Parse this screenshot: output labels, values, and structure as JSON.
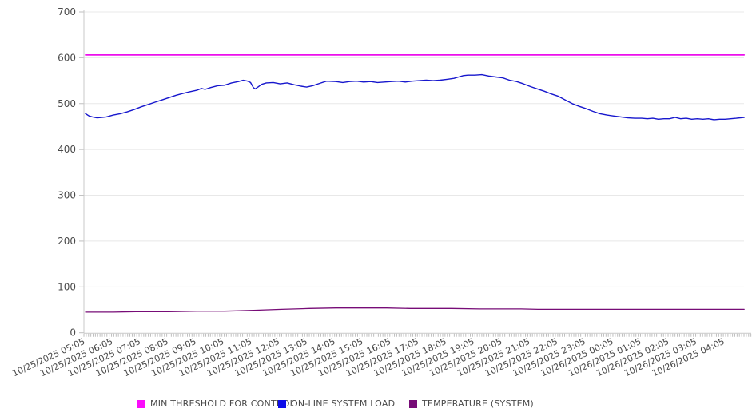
{
  "chart_data": {
    "type": "line",
    "title": "",
    "xlabel": "",
    "ylabel": "",
    "ylim": [
      0,
      700
    ],
    "y_ticks": [
      "0",
      "100",
      "200",
      "300",
      "400",
      "500",
      "600",
      "700"
    ],
    "grid": "horizontal",
    "legend_position": "bottom",
    "x_tick_labels": [
      "10/25/2025 05:05",
      "10/25/2025 06:05",
      "10/25/2025 07:05",
      "10/25/2025 08:05",
      "10/25/2025 09:05",
      "10/25/2025 10:05",
      "10/25/2025 11:05",
      "10/25/2025 12:05",
      "10/25/2025 13:05",
      "10/25/2025 14:05",
      "10/25/2025 15:05",
      "10/25/2025 16:05",
      "10/25/2025 17:05",
      "10/25/2025 18:05",
      "10/25/2025 19:05",
      "10/25/2025 20:05",
      "10/25/2025 21:05",
      "10/25/2025 22:05",
      "10/25/2025 23:05",
      "10/26/2025 00:05",
      "10/26/2025 01:05",
      "10/26/2025 02:05",
      "10/26/2025 03:05",
      "10/26/2025 04:05"
    ],
    "minutes_between_ticks": 60,
    "x_domain_minutes": [
      0,
      1421
    ],
    "series": [
      {
        "name": "MIN THRESHOLD FOR CONTROL",
        "color": "#ec0fec",
        "stroke_width": 1.8,
        "points": [
          [
            0,
            606
          ],
          [
            1421,
            606
          ]
        ]
      },
      {
        "name": "ON-LINE SYSTEM LOAD",
        "color": "#1717cd",
        "stroke_width": 1.4,
        "points": [
          [
            0,
            478
          ],
          [
            8,
            473
          ],
          [
            15,
            471
          ],
          [
            25,
            469
          ],
          [
            35,
            470
          ],
          [
            45,
            471
          ],
          [
            60,
            475
          ],
          [
            75,
            478
          ],
          [
            90,
            482
          ],
          [
            105,
            487
          ],
          [
            120,
            493
          ],
          [
            135,
            498
          ],
          [
            150,
            503
          ],
          [
            165,
            508
          ],
          [
            180,
            513
          ],
          [
            195,
            518
          ],
          [
            210,
            522
          ],
          [
            225,
            526
          ],
          [
            240,
            529
          ],
          [
            250,
            533
          ],
          [
            258,
            531
          ],
          [
            270,
            535
          ],
          [
            285,
            539
          ],
          [
            300,
            540
          ],
          [
            315,
            545
          ],
          [
            330,
            548
          ],
          [
            340,
            551
          ],
          [
            350,
            549
          ],
          [
            356,
            546
          ],
          [
            362,
            535
          ],
          [
            366,
            532
          ],
          [
            372,
            536
          ],
          [
            380,
            542
          ],
          [
            390,
            545
          ],
          [
            405,
            546
          ],
          [
            420,
            543
          ],
          [
            435,
            545
          ],
          [
            450,
            541
          ],
          [
            465,
            538
          ],
          [
            477,
            536
          ],
          [
            490,
            539
          ],
          [
            505,
            544
          ],
          [
            520,
            549
          ],
          [
            540,
            548
          ],
          [
            555,
            546
          ],
          [
            570,
            548
          ],
          [
            585,
            549
          ],
          [
            600,
            547
          ],
          [
            615,
            548
          ],
          [
            630,
            546
          ],
          [
            645,
            547
          ],
          [
            660,
            548
          ],
          [
            675,
            549
          ],
          [
            690,
            547
          ],
          [
            705,
            549
          ],
          [
            720,
            550
          ],
          [
            735,
            551
          ],
          [
            750,
            550
          ],
          [
            765,
            551
          ],
          [
            780,
            553
          ],
          [
            795,
            555
          ],
          [
            805,
            558
          ],
          [
            815,
            561
          ],
          [
            825,
            562
          ],
          [
            840,
            562
          ],
          [
            855,
            563
          ],
          [
            870,
            560
          ],
          [
            885,
            558
          ],
          [
            900,
            556
          ],
          [
            915,
            551
          ],
          [
            930,
            548
          ],
          [
            945,
            543
          ],
          [
            960,
            537
          ],
          [
            975,
            532
          ],
          [
            990,
            527
          ],
          [
            1005,
            521
          ],
          [
            1020,
            516
          ],
          [
            1035,
            508
          ],
          [
            1050,
            500
          ],
          [
            1065,
            494
          ],
          [
            1080,
            489
          ],
          [
            1095,
            483
          ],
          [
            1110,
            478
          ],
          [
            1125,
            475
          ],
          [
            1140,
            473
          ],
          [
            1155,
            471
          ],
          [
            1170,
            469
          ],
          [
            1185,
            468
          ],
          [
            1200,
            468
          ],
          [
            1212,
            467
          ],
          [
            1224,
            468
          ],
          [
            1236,
            466
          ],
          [
            1248,
            467
          ],
          [
            1260,
            467
          ],
          [
            1272,
            470
          ],
          [
            1284,
            467
          ],
          [
            1296,
            468
          ],
          [
            1308,
            466
          ],
          [
            1320,
            467
          ],
          [
            1332,
            466
          ],
          [
            1344,
            467
          ],
          [
            1356,
            465
          ],
          [
            1368,
            466
          ],
          [
            1380,
            466
          ],
          [
            1392,
            467
          ],
          [
            1404,
            468
          ],
          [
            1421,
            470
          ]
        ]
      },
      {
        "name": "TEMPERATURE (SYSTEM)",
        "color": "#770c77",
        "stroke_width": 1.3,
        "points": [
          [
            0,
            45
          ],
          [
            60,
            45
          ],
          [
            109,
            46
          ],
          [
            180,
            46
          ],
          [
            240,
            47
          ],
          [
            300,
            47
          ],
          [
            333,
            48
          ],
          [
            363,
            49
          ],
          [
            393,
            50
          ],
          [
            423,
            51
          ],
          [
            453,
            52
          ],
          [
            483,
            53
          ],
          [
            540,
            54
          ],
          [
            650,
            54
          ],
          [
            700,
            53
          ],
          [
            790,
            53
          ],
          [
            850,
            52
          ],
          [
            940,
            52
          ],
          [
            976,
            51
          ],
          [
            1050,
            51
          ],
          [
            1140,
            51
          ],
          [
            1230,
            51
          ],
          [
            1320,
            51
          ],
          [
            1421,
            51
          ]
        ]
      }
    ]
  },
  "legend": {
    "items": [
      {
        "label": "MIN THRESHOLD FOR CONTROL",
        "color": "#fb0dfb"
      },
      {
        "label": "ON-LINE SYSTEM LOAD",
        "color": "#0d0de8"
      },
      {
        "label": "TEMPERATURE (SYSTEM)",
        "color": "#770c77"
      }
    ]
  },
  "colors": {
    "gridline": "#e8e8e8",
    "axis": "#c9c9c9",
    "tick": "#bfbfbf",
    "tick_label": "#4a4a4a"
  }
}
